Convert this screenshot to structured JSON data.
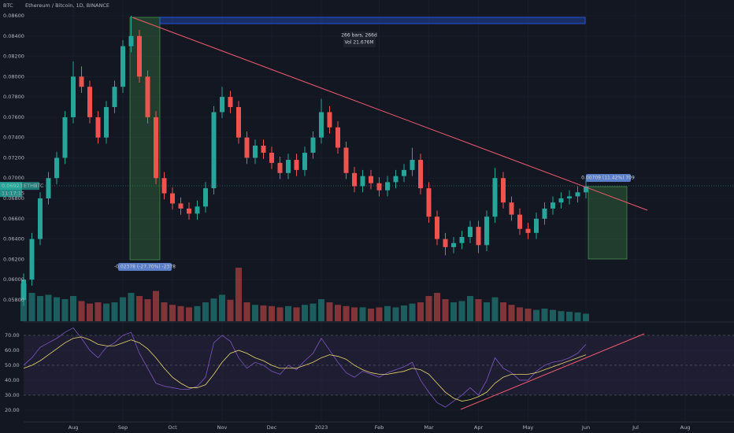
{
  "chart_data": {
    "type": "candlestick",
    "symbol_title": "Ethereum / Bitcoin, 1D, BINANCE",
    "currency": "BTC",
    "ticker": "ETHBTC",
    "countdown": "11:17:15",
    "last_price": {
      "value": 0.06923,
      "label": "0.06923"
    },
    "annotations": {
      "range_bars": "266 bars, 266d",
      "range_vol": "Vol 21.676M",
      "drop": "-0.02378 (-27.70%) -2378",
      "gain": "0.00709 (11.42%) 709"
    },
    "categories": [
      null,
      null,
      null,
      null,
      null,
      null,
      "Aug",
      null,
      null,
      null,
      null,
      null,
      "Sep",
      null,
      null,
      null,
      null,
      null,
      "Oct",
      null,
      null,
      null,
      null,
      null,
      "Nov",
      null,
      null,
      null,
      null,
      null,
      "Dec",
      null,
      null,
      null,
      null,
      null,
      "2023",
      null,
      null,
      null,
      null,
      null,
      null,
      "Feb",
      null,
      null,
      null,
      null,
      null,
      "Mar",
      null,
      null,
      null,
      null,
      null,
      "Apr",
      null,
      null,
      null,
      null,
      null,
      "May",
      null,
      null,
      null,
      null,
      null,
      null,
      "Jun",
      null,
      null,
      null,
      null,
      null,
      "Jul",
      null,
      null,
      null,
      null,
      null,
      "Aug",
      null,
      null
    ],
    "open": [
      0.058,
      0.06,
      0.064,
      0.068,
      0.07,
      0.072,
      0.076,
      0.08,
      0.079,
      0.076,
      0.074,
      0.077,
      0.079,
      0.083,
      0.084,
      0.08,
      0.076,
      0.07,
      0.0685,
      0.0675,
      0.067,
      0.0665,
      0.0672,
      0.069,
      0.0765,
      0.078,
      0.077,
      0.074,
      0.072,
      0.0732,
      0.0725,
      0.0715,
      0.0705,
      0.0718,
      0.0708,
      0.0725,
      0.074,
      0.0765,
      0.075,
      0.073,
      0.0705,
      0.0692,
      0.0702,
      0.0695,
      0.0688,
      0.0696,
      0.0702,
      0.0708,
      0.0718,
      0.069,
      0.0662,
      0.064,
      0.0632,
      0.0636,
      0.0642,
      0.0652,
      0.0634,
      0.0662,
      0.07,
      0.0676,
      0.0664,
      0.065,
      0.0646,
      0.066,
      0.067,
      0.0676,
      0.068,
      0.0682,
      0.0686,
      null,
      null,
      null,
      null,
      null,
      null,
      null,
      null,
      null,
      null,
      null,
      null,
      null,
      null
    ],
    "high": [
      0.0606,
      0.0646,
      0.0686,
      0.0706,
      0.0726,
      0.0766,
      0.0815,
      0.081,
      0.0796,
      0.0766,
      0.0776,
      0.0796,
      0.0836,
      0.086,
      0.0846,
      0.0806,
      0.0766,
      0.0706,
      0.0691,
      0.0681,
      0.0676,
      0.0678,
      0.0696,
      0.0771,
      0.079,
      0.0786,
      0.0776,
      0.0746,
      0.0738,
      0.0738,
      0.0731,
      0.0721,
      0.0724,
      0.0724,
      0.0731,
      0.0746,
      0.0778,
      0.0771,
      0.0756,
      0.0736,
      0.0711,
      0.0708,
      0.0708,
      0.0701,
      0.0702,
      0.0708,
      0.0714,
      0.073,
      0.0724,
      0.0696,
      0.0668,
      0.0646,
      0.0642,
      0.0648,
      0.0658,
      0.0658,
      0.0668,
      0.071,
      0.0706,
      0.0682,
      0.067,
      0.0656,
      0.0666,
      0.0676,
      0.0682,
      0.0686,
      0.0688,
      0.0692,
      0.0698,
      null,
      null,
      null,
      null,
      null,
      null,
      null,
      null,
      null,
      null,
      null,
      null,
      null,
      null
    ],
    "low": [
      0.0574,
      0.0594,
      0.0634,
      0.0674,
      0.0694,
      0.0714,
      0.0754,
      0.0784,
      0.0754,
      0.0734,
      0.0734,
      0.0764,
      0.0784,
      0.0824,
      0.0794,
      0.0754,
      0.0694,
      0.0679,
      0.0669,
      0.0664,
      0.0659,
      0.0659,
      0.0666,
      0.0684,
      0.0759,
      0.0764,
      0.0734,
      0.0714,
      0.0714,
      0.0719,
      0.0709,
      0.0699,
      0.0699,
      0.0702,
      0.0702,
      0.0719,
      0.0734,
      0.0744,
      0.0724,
      0.0699,
      0.0686,
      0.0686,
      0.0689,
      0.0682,
      0.0682,
      0.069,
      0.0696,
      0.0702,
      0.0684,
      0.0656,
      0.0634,
      0.0624,
      0.0626,
      0.063,
      0.0636,
      0.0626,
      0.0628,
      0.0656,
      0.067,
      0.0658,
      0.0644,
      0.064,
      0.064,
      0.0654,
      0.0664,
      0.067,
      0.0674,
      0.0676,
      0.068,
      null,
      null,
      null,
      null,
      null,
      null,
      null,
      null,
      null,
      null,
      null,
      null,
      null,
      null
    ],
    "close": [
      0.06,
      0.064,
      0.068,
      0.07,
      0.072,
      0.076,
      0.08,
      0.079,
      0.076,
      0.074,
      0.077,
      0.079,
      0.083,
      0.084,
      0.08,
      0.076,
      0.07,
      0.0685,
      0.0675,
      0.067,
      0.0665,
      0.0672,
      0.069,
      0.0765,
      0.078,
      0.077,
      0.074,
      0.072,
      0.0732,
      0.0725,
      0.0715,
      0.0705,
      0.0718,
      0.0708,
      0.0725,
      0.074,
      0.0765,
      0.075,
      0.073,
      0.0705,
      0.0692,
      0.0702,
      0.0695,
      0.0688,
      0.0696,
      0.0702,
      0.0708,
      0.0718,
      0.069,
      0.0662,
      0.064,
      0.0632,
      0.0636,
      0.0642,
      0.0652,
      0.0634,
      0.0662,
      0.07,
      0.0676,
      0.0664,
      0.065,
      0.0646,
      0.066,
      0.067,
      0.0676,
      0.068,
      0.0682,
      0.0686,
      0.0692,
      null,
      null,
      null,
      null,
      null,
      null,
      null,
      null,
      null,
      null,
      null,
      null,
      null,
      null
    ],
    "up_color": "#26a69a",
    "down_color": "#ef5350",
    "ylim": [
      0.0559,
      0.08755
    ],
    "yticks": [
      {
        "value": 0.086,
        "label": "0.08600"
      },
      {
        "value": 0.084,
        "label": "0.08400"
      },
      {
        "value": 0.082,
        "label": "0.08200"
      },
      {
        "value": 0.08,
        "label": "0.08000"
      },
      {
        "value": 0.078,
        "label": "0.07800"
      },
      {
        "value": 0.076,
        "label": "0.07600"
      },
      {
        "value": 0.074,
        "label": "0.07400"
      },
      {
        "value": 0.072,
        "label": "0.07200"
      },
      {
        "value": 0.07,
        "label": "0.07000"
      },
      {
        "value": 0.068,
        "label": "0.06800"
      },
      {
        "value": 0.066,
        "label": "0.06600"
      },
      {
        "value": 0.064,
        "label": "0.06400"
      },
      {
        "value": 0.062,
        "label": "0.06200"
      },
      {
        "value": 0.06,
        "label": "0.06000"
      },
      {
        "value": 0.058,
        "label": "0.05800"
      }
    ],
    "grid": true,
    "volume": {
      "values": [
        60,
        45,
        40,
        42,
        38,
        35,
        40,
        32,
        28,
        30,
        28,
        30,
        38,
        45,
        40,
        35,
        48,
        30,
        26,
        24,
        22,
        24,
        30,
        36,
        42,
        34,
        85,
        30,
        26,
        25,
        24,
        22,
        24,
        22,
        26,
        28,
        35,
        30,
        26,
        24,
        22,
        22,
        20,
        22,
        24,
        22,
        25,
        28,
        30,
        40,
        45,
        35,
        30,
        32,
        40,
        35,
        30,
        38,
        30,
        26,
        22,
        20,
        18,
        20,
        18,
        16,
        15,
        14,
        12,
        null,
        null,
        null,
        null,
        null,
        null,
        null,
        null,
        null,
        null,
        null,
        null,
        null,
        null
      ],
      "lim": [
        0,
        100
      ]
    },
    "rsi": {
      "values": [
        50,
        55,
        62,
        65,
        68,
        72,
        75,
        68,
        60,
        55,
        62,
        65,
        70,
        72,
        58,
        48,
        38,
        36,
        35,
        34,
        34,
        36,
        42,
        65,
        70,
        66,
        55,
        48,
        52,
        50,
        46,
        44,
        50,
        47,
        53,
        58,
        68,
        60,
        52,
        45,
        42,
        46,
        44,
        42,
        45,
        47,
        49,
        52,
        40,
        32,
        25,
        22,
        26,
        30,
        35,
        30,
        40,
        55,
        48,
        45,
        40,
        40,
        46,
        50,
        52,
        53,
        55,
        58,
        64,
        null,
        null,
        null,
        null,
        null,
        null,
        null,
        null,
        null,
        null,
        null,
        null,
        null,
        null
      ],
      "ma": [
        48,
        50,
        53,
        57,
        61,
        65,
        68,
        69,
        67,
        64,
        63,
        63,
        65,
        67,
        65,
        61,
        55,
        48,
        42,
        38,
        35,
        35,
        37,
        44,
        52,
        58,
        60,
        58,
        55,
        53,
        50,
        48,
        48,
        48,
        50,
        52,
        55,
        57,
        56,
        54,
        50,
        47,
        45,
        44,
        44,
        45,
        46,
        48,
        47,
        44,
        38,
        32,
        28,
        26,
        27,
        29,
        32,
        38,
        42,
        44,
        44,
        44,
        45,
        47,
        49,
        51,
        53,
        55,
        57,
        null,
        null,
        null,
        null,
        null,
        null,
        null,
        null,
        null,
        null,
        null,
        null,
        null,
        null
      ],
      "color": "#7e57c2",
      "ma_color": "#e8d86a",
      "ylim": [
        12.6,
        78.4
      ],
      "yticks": [
        {
          "value": 70,
          "label": "70.00"
        },
        {
          "value": 60,
          "label": "60.00"
        },
        {
          "value": 50,
          "label": "50.00"
        },
        {
          "value": 40,
          "label": "40.00"
        },
        {
          "value": 30,
          "label": "30.00"
        },
        {
          "value": 20,
          "label": "20.00"
        }
      ]
    }
  }
}
